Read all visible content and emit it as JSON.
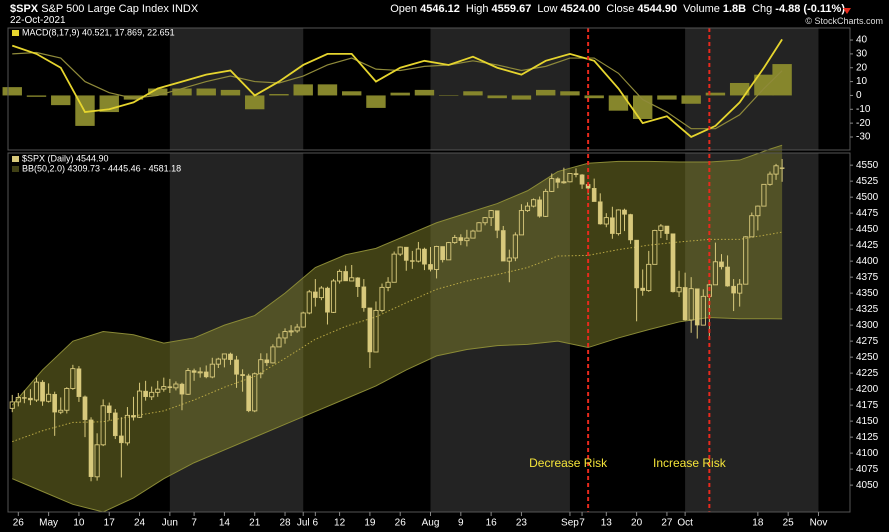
{
  "header": {
    "symbol": "$SPX",
    "name": "S&P 500 Large Cap Index",
    "exchange": "INDX",
    "date": "22-Oct-2021",
    "copyright": "© StockCharts.com",
    "quote": [
      {
        "label": "Open",
        "value": "4546.12"
      },
      {
        "label": "High",
        "value": "4559.67"
      },
      {
        "label": "Low",
        "value": "4524.00"
      },
      {
        "label": "Close",
        "value": "4544.90"
      },
      {
        "label": "Volume",
        "value": "1.8B"
      },
      {
        "label": "Chg",
        "value": "-4.88 (-0.11%)"
      }
    ]
  },
  "chart_data": [
    {
      "type": "macd",
      "legend": "MACD(8,17,9) 40.521, 17.869, 22.651",
      "x": [
        0,
        4,
        8,
        12,
        16,
        20,
        24,
        28,
        32,
        36,
        40,
        44,
        48,
        52,
        56,
        60,
        64,
        68,
        72,
        76,
        80,
        84,
        88,
        92,
        96,
        100,
        104,
        108,
        112,
        116,
        120,
        124,
        127
      ],
      "macd_line": {
        "color": "#e6d52e",
        "values": [
          36,
          30,
          20,
          -12,
          -10,
          -5,
          5,
          10,
          15,
          18,
          0,
          10,
          22,
          30,
          30,
          10,
          20,
          25,
          22,
          28,
          20,
          15,
          25,
          30,
          25,
          5,
          -20,
          -15,
          -30,
          -22,
          -5,
          20,
          40.521
        ]
      },
      "signal_line": {
        "color": "#8f8a3a",
        "values": [
          30,
          31,
          27,
          10,
          2,
          -2,
          0,
          5,
          10,
          14,
          10,
          9,
          14,
          22,
          27,
          19,
          18,
          21,
          22,
          25,
          22,
          18,
          21,
          27,
          27,
          16,
          -3,
          -12,
          -24,
          -24,
          -14,
          5,
          17.869
        ]
      },
      "histogram": {
        "color": "#86862c",
        "values": [
          6,
          -1,
          -7,
          -22,
          -12,
          -3,
          5,
          5,
          5,
          4,
          -10,
          1,
          8,
          8,
          3,
          -9,
          2,
          4,
          0,
          3,
          -2,
          -3,
          4,
          3,
          -2,
          -11,
          -17,
          -3,
          -6,
          2,
          9,
          15,
          22.651
        ]
      },
      "ylim": [
        -39.4,
        48.7
      ],
      "yticks": [
        -30,
        -20,
        -10,
        0,
        10,
        20,
        30,
        40
      ]
    },
    {
      "type": "candlestick",
      "legend": [
        "$SPX (Daily) 4544.90",
        "BB(50,2.0) 4309.73 - 4445.46 - 4581.18"
      ],
      "color": "#d8c97c",
      "open": [
        4170,
        4180,
        4187,
        4186,
        4183,
        4211,
        4181,
        4192,
        4164,
        4167,
        4201,
        4232,
        4188,
        4152,
        4063,
        4113,
        4174,
        4163,
        4127,
        4116,
        4159,
        4156,
        4197,
        4188,
        4195,
        4200,
        4204,
        4202,
        4208,
        4192,
        4229,
        4226,
        4227,
        4219,
        4239,
        4247,
        4255,
        4246,
        4223,
        4221,
        4166,
        4224,
        4246,
        4241,
        4266,
        4280,
        4290,
        4291,
        4297,
        4319,
        4352,
        4343,
        4358,
        4320,
        4369,
        4384,
        4369,
        4374,
        4360,
        4327,
        4258,
        4323,
        4359,
        4367,
        4411,
        4422,
        4401,
        4400,
        4419,
        4395,
        4387,
        4423,
        4402,
        4429,
        4437,
        4432,
        4436,
        4447,
        4460,
        4468,
        4479,
        4448,
        4400,
        4405,
        4441,
        4479,
        4486,
        4496,
        4470,
        4509,
        4529,
        4523,
        4524,
        4537,
        4535,
        4520,
        4514,
        4493,
        4458,
        4468,
        4443,
        4480,
        4473,
        4433,
        4358,
        4354,
        4395,
        4448,
        4455,
        4443,
        4352,
        4359,
        4308,
        4357,
        4300,
        4345,
        4363,
        4399,
        4391,
        4361,
        4350,
        4364,
        4438,
        4471,
        4486,
        4520,
        4536,
        4546.12
      ],
      "high": [
        4191,
        4194,
        4198,
        4200,
        4218,
        4214,
        4209,
        4196,
        4187,
        4203,
        4238,
        4236,
        4190,
        4156,
        4131,
        4184,
        4179,
        4169,
        4156,
        4172,
        4188,
        4210,
        4213,
        4204,
        4213,
        4218,
        4216,
        4212,
        4210,
        4233,
        4232,
        4234,
        4237,
        4249,
        4249,
        4255,
        4257,
        4252,
        4231,
        4224,
        4226,
        4256,
        4256,
        4270,
        4287,
        4295,
        4300,
        4302,
        4321,
        4355,
        4372,
        4361,
        4360,
        4372,
        4387,
        4393,
        4394,
        4375,
        4372,
        4327,
        4337,
        4365,
        4375,
        4415,
        4423,
        4422,
        4416,
        4430,
        4421,
        4422,
        4424,
        4423,
        4430,
        4441,
        4442,
        4449,
        4449,
        4461,
        4469,
        4480,
        4479,
        4455,
        4418,
        4445,
        4489,
        4492,
        4498,
        4501,
        4513,
        4537,
        4531,
        4546,
        4537,
        4545,
        4536,
        4521,
        4529,
        4506,
        4475,
        4485,
        4481,
        4482,
        4474,
        4433,
        4387,
        4416,
        4449,
        4458,
        4455,
        4443,
        4385,
        4382,
        4375,
        4357,
        4356,
        4365,
        4429,
        4411,
        4409,
        4372,
        4372,
        4439,
        4476,
        4487,
        4520,
        4540,
        4552,
        4559.67
      ],
      "low": [
        4164,
        4173,
        4178,
        4175,
        4180,
        4174,
        4179,
        4127,
        4161,
        4162,
        4199,
        4180,
        4125,
        4056,
        4057,
        4111,
        4151,
        4122,
        4062,
        4112,
        4151,
        4155,
        4182,
        4183,
        4188,
        4196,
        4194,
        4198,
        4167,
        4191,
        4213,
        4218,
        4217,
        4217,
        4233,
        4234,
        4238,
        4202,
        4196,
        4164,
        4164,
        4217,
        4236,
        4240,
        4266,
        4271,
        4283,
        4288,
        4296,
        4317,
        4329,
        4339,
        4301,
        4319,
        4365,
        4369,
        4369,
        4344,
        4321,
        4233,
        4258,
        4320,
        4353,
        4367,
        4408,
        4385,
        4388,
        4398,
        4386,
        4384,
        4373,
        4398,
        4402,
        4427,
        4425,
        4423,
        4436,
        4447,
        4456,
        4455,
        4436,
        4400,
        4367,
        4400,
        4441,
        4477,
        4484,
        4468,
        4469,
        4508,
        4514,
        4521,
        4523,
        4531,
        4513,
        4504,
        4493,
        4457,
        4453,
        4435,
        4440,
        4447,
        4427,
        4306,
        4346,
        4352,
        4395,
        4436,
        4433,
        4351,
        4344,
        4307,
        4288,
        4279,
        4300,
        4278,
        4363,
        4387,
        4360,
        4322,
        4329,
        4364,
        4438,
        4448,
        4486,
        4518,
        4527,
        4524
      ],
      "close": [
        4180,
        4187,
        4186,
        4183,
        4211,
        4181,
        4192,
        4164,
        4167,
        4201,
        4232,
        4188,
        4152,
        4063,
        4113,
        4174,
        4163,
        4127,
        4116,
        4159,
        4156,
        4197,
        4188,
        4195,
        4200,
        4204,
        4202,
        4208,
        4192,
        4229,
        4226,
        4227,
        4219,
        4239,
        4247,
        4255,
        4246,
        4223,
        4221,
        4166,
        4224,
        4246,
        4241,
        4266,
        4280,
        4290,
        4291,
        4297,
        4319,
        4352,
        4343,
        4358,
        4320,
        4369,
        4384,
        4369,
        4374,
        4360,
        4327,
        4258,
        4323,
        4359,
        4367,
        4411,
        4422,
        4401,
        4400,
        4419,
        4395,
        4387,
        4423,
        4402,
        4429,
        4437,
        4432,
        4436,
        4447,
        4460,
        4468,
        4479,
        4448,
        4400,
        4405,
        4441,
        4479,
        4486,
        4496,
        4470,
        4509,
        4529,
        4523,
        4524,
        4537,
        4535,
        4520,
        4514,
        4493,
        4458,
        4468,
        4443,
        4480,
        4473,
        4433,
        4358,
        4354,
        4395,
        4448,
        4455,
        4443,
        4352,
        4359,
        4308,
        4357,
        4300,
        4345,
        4363,
        4399,
        4391,
        4361,
        4350,
        4364,
        4438,
        4471,
        4486,
        4520,
        4536,
        4549,
        4544.9
      ],
      "bollinger": {
        "x": [
          0,
          5,
          10,
          15,
          20,
          25,
          30,
          35,
          40,
          45,
          50,
          55,
          60,
          65,
          70,
          75,
          80,
          85,
          90,
          95,
          100,
          105,
          110,
          115,
          120,
          125,
          127
        ],
        "fill": "rgba(128,128,42,0.5)",
        "upper": {
          "color": "#8a8a36",
          "values": [
            4175,
            4230,
            4275,
            4290,
            4285,
            4272,
            4280,
            4300,
            4315,
            4350,
            4390,
            4410,
            4420,
            4440,
            4460,
            4475,
            4490,
            4510,
            4540,
            4553,
            4556,
            4556,
            4555,
            4555,
            4558,
            4575,
            4581.18
          ]
        },
        "middle": {
          "color": "#b9a844",
          "values": [
            4118,
            4135,
            4148,
            4149,
            4158,
            4166,
            4183,
            4203,
            4220,
            4248,
            4278,
            4298,
            4313,
            4335,
            4356,
            4369,
            4379,
            4390,
            4408,
            4409,
            4418,
            4425,
            4430,
            4434,
            4434,
            4442,
            4445.46
          ]
        },
        "lower": {
          "color": "#8a8a36",
          "values": [
            4060,
            4040,
            4020,
            4008,
            4030,
            4060,
            4085,
            4105,
            4125,
            4145,
            4165,
            4185,
            4205,
            4230,
            4252,
            4262,
            4268,
            4270,
            4275,
            4265,
            4280,
            4293,
            4305,
            4312,
            4310,
            4310,
            4309.73
          ]
        }
      },
      "annotations": [
        {
          "text": "Decrease Risk",
          "x": 95,
          "y": 4083,
          "color": "#f4e43a",
          "line_color": "#e8291c"
        },
        {
          "text": "Increase Risk",
          "x": 115,
          "y": 4083,
          "color": "#f4e43a",
          "line_color": "#e8291c"
        }
      ],
      "xlim": [
        -0.7,
        138.2
      ],
      "xticks": [
        {
          "value": 1,
          "label": "26"
        },
        {
          "value": 6,
          "label": "May"
        },
        {
          "value": 11,
          "label": "10"
        },
        {
          "value": 16,
          "label": "17"
        },
        {
          "value": 21,
          "label": "24"
        },
        {
          "value": 26,
          "label": "Jun"
        },
        {
          "value": 30,
          "label": "7"
        },
        {
          "value": 35,
          "label": "14"
        },
        {
          "value": 40,
          "label": "21"
        },
        {
          "value": 45,
          "label": "28"
        },
        {
          "value": 48,
          "label": "Jul"
        },
        {
          "value": 50,
          "label": "6"
        },
        {
          "value": 54,
          "label": "12"
        },
        {
          "value": 59,
          "label": "19"
        },
        {
          "value": 64,
          "label": "26"
        },
        {
          "value": 69,
          "label": "Aug"
        },
        {
          "value": 74,
          "label": "9"
        },
        {
          "value": 79,
          "label": "16"
        },
        {
          "value": 84,
          "label": "23"
        },
        {
          "value": 92,
          "label": "Sep"
        },
        {
          "value": 94,
          "label": "7"
        },
        {
          "value": 98,
          "label": "13"
        },
        {
          "value": 103,
          "label": "20"
        },
        {
          "value": 108,
          "label": "27"
        },
        {
          "value": 111,
          "label": "Oct"
        },
        {
          "value": 123,
          "label": "18"
        },
        {
          "value": 128,
          "label": "25"
        },
        {
          "value": 133,
          "label": "Nov"
        }
      ],
      "ylim": [
        4008,
        4569
      ],
      "yticks": [
        4050,
        4075,
        4100,
        4125,
        4150,
        4175,
        4200,
        4225,
        4250,
        4275,
        4300,
        4325,
        4350,
        4375,
        4400,
        4425,
        4450,
        4475,
        4500,
        4525,
        4550
      ]
    }
  ]
}
